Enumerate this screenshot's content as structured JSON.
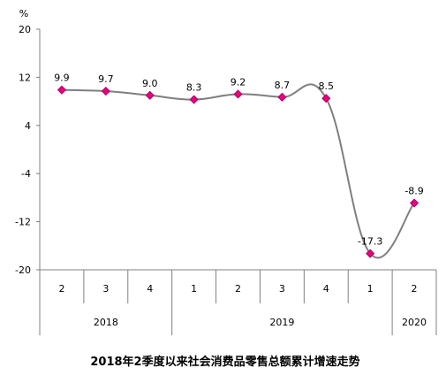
{
  "chart_data": {
    "type": "line",
    "title": "2018年2季度以来社会消费品零售总额累计增速走势",
    "ylabel": "%",
    "ylim": [
      -20,
      20
    ],
    "yticks": [
      "20",
      "12",
      "4",
      "-4",
      "-12",
      "-20"
    ],
    "x_quarters": [
      "2",
      "3",
      "4",
      "1",
      "2",
      "3",
      "4",
      "1",
      "2"
    ],
    "x_years": [
      "2018",
      "2019",
      "2020"
    ],
    "series": [
      {
        "values": [
          9.9,
          9.7,
          9.0,
          8.3,
          9.2,
          8.7,
          8.5,
          -17.3,
          -8.9
        ],
        "labels": [
          "9.9",
          "9.7",
          "9.0",
          "8.3",
          "9.2",
          "8.7",
          "8.5",
          "-17.3",
          "-8.9"
        ]
      }
    ],
    "colors": {
      "line": "#7f7f7f",
      "marker": "#e6007e",
      "axis": "#808080",
      "grid": "#d9d9d9"
    },
    "grid": false
  }
}
